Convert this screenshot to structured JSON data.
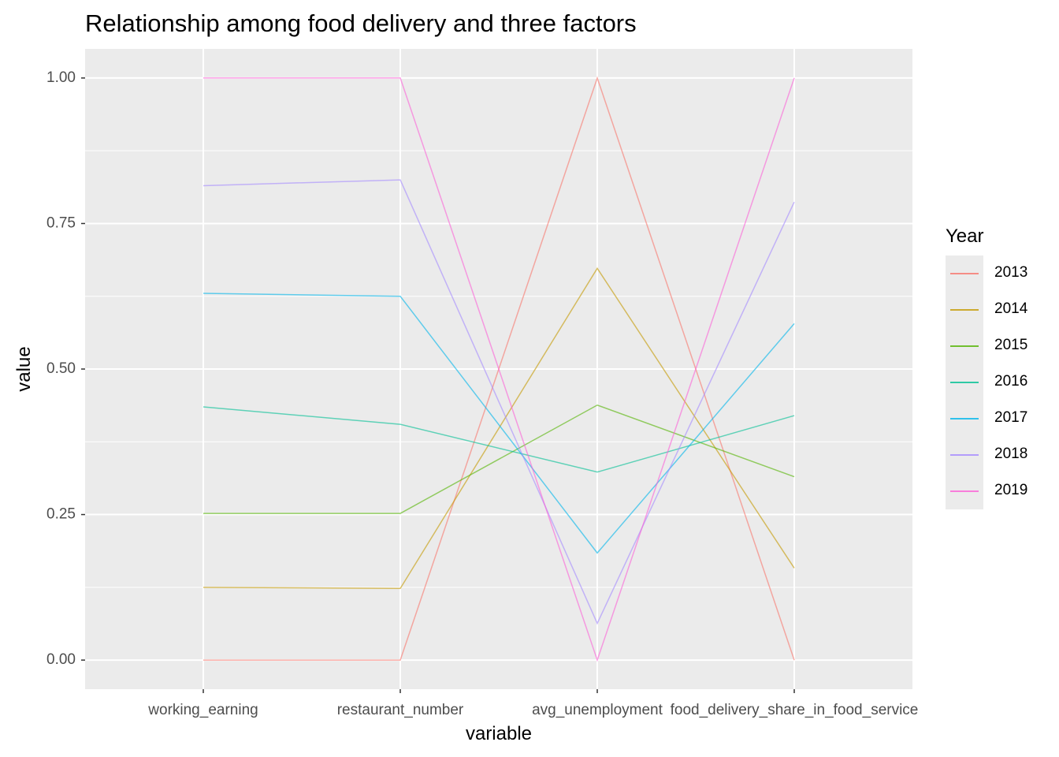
{
  "chart_data": {
    "type": "line",
    "title": "Relationship among food delivery and three factors",
    "xlabel": "variable",
    "ylabel": "value",
    "ylim": [
      -0.05,
      1.05
    ],
    "yticks": [
      0.0,
      0.25,
      0.5,
      0.75,
      1.0
    ],
    "ytick_labels": [
      "0.00",
      "0.25",
      "0.50",
      "0.75",
      "1.00"
    ],
    "categories": [
      "working_earning",
      "restaurant_number",
      "avg_unemployment",
      "food_delivery_share_in_food_service"
    ],
    "grid": true,
    "legend_title": "Year",
    "legend_position": "right",
    "series": [
      {
        "name": "2013",
        "color": "#F8766D",
        "values": [
          0.0,
          0.0,
          1.0,
          0.0
        ]
      },
      {
        "name": "2014",
        "color": "#C49A00",
        "values": [
          0.125,
          0.123,
          0.673,
          0.158
        ]
      },
      {
        "name": "2015",
        "color": "#53B400",
        "values": [
          0.252,
          0.252,
          0.438,
          0.315
        ]
      },
      {
        "name": "2016",
        "color": "#00C094",
        "values": [
          0.435,
          0.405,
          0.323,
          0.42
        ]
      },
      {
        "name": "2017",
        "color": "#00B6EB",
        "values": [
          0.63,
          0.625,
          0.184,
          0.578
        ]
      },
      {
        "name": "2018",
        "color": "#A58AFF",
        "values": [
          0.815,
          0.825,
          0.063,
          0.787
        ]
      },
      {
        "name": "2019",
        "color": "#FB61D7",
        "values": [
          1.0,
          1.0,
          0.0,
          1.0
        ]
      }
    ]
  }
}
